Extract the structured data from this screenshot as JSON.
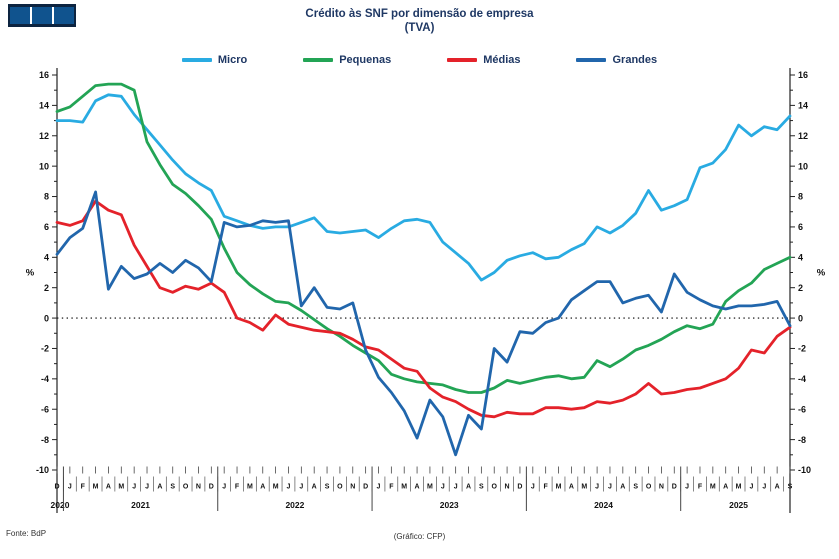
{
  "title": {
    "line1": "Crédito às SNF por dimensão de empresa",
    "line2": "(TVA)"
  },
  "footer": {
    "source": "Fonte: BdP",
    "credit": "(Gráfico: CFP)"
  },
  "axis": {
    "unit_left": "%",
    "unit_right": "%",
    "ymin": -10,
    "ymax": 16,
    "ystep": 2,
    "years": [
      {
        "label": "2020",
        "from": 0,
        "to": 0
      },
      {
        "label": "2021",
        "from": 1,
        "to": 12
      },
      {
        "label": "2022",
        "from": 13,
        "to": 24
      },
      {
        "label": "2023",
        "from": 25,
        "to": 36
      },
      {
        "label": "2024",
        "from": 37,
        "to": 48
      },
      {
        "label": "2025",
        "from": 49,
        "to": 57
      }
    ]
  },
  "chart_data": {
    "type": "line",
    "title": "Crédito às SNF por dimensão de empresa (TVA)",
    "ylabel": "%",
    "ylim": [
      -10,
      16
    ],
    "grid": false,
    "legend_position": "top",
    "x_months": [
      "D",
      "J",
      "F",
      "M",
      "A",
      "M",
      "J",
      "J",
      "A",
      "S",
      "O",
      "N",
      "D",
      "J",
      "F",
      "M",
      "A",
      "M",
      "J",
      "J",
      "A",
      "S",
      "O",
      "N",
      "D",
      "J",
      "F",
      "M",
      "A",
      "M",
      "J",
      "J",
      "A",
      "S",
      "O",
      "N",
      "D",
      "J",
      "F",
      "M",
      "A",
      "M",
      "J",
      "J",
      "A",
      "S",
      "O",
      "N",
      "D",
      "J",
      "F",
      "M",
      "A",
      "M",
      "J",
      "J",
      "A",
      "S"
    ],
    "x_start": "2020-12",
    "x_end": "2025-09",
    "series": [
      {
        "name": "Micro",
        "color": "#29ABE2",
        "values": [
          13.0,
          13.0,
          12.9,
          14.3,
          14.7,
          14.6,
          13.4,
          12.4,
          11.4,
          10.4,
          9.5,
          8.9,
          8.4,
          6.7,
          6.4,
          6.1,
          5.9,
          6.0,
          6.0,
          6.3,
          6.6,
          5.7,
          5.6,
          5.7,
          5.8,
          5.3,
          5.9,
          6.4,
          6.5,
          6.3,
          5.0,
          4.3,
          3.6,
          2.5,
          3.0,
          3.8,
          4.1,
          4.3,
          3.9,
          4.0,
          4.5,
          4.9,
          6.0,
          5.6,
          6.1,
          6.9,
          8.4,
          7.1,
          7.4,
          7.8,
          9.9,
          10.2,
          11.1,
          12.7,
          12.0,
          12.6,
          12.4,
          13.3
        ]
      },
      {
        "name": "Pequenas",
        "color": "#23A455",
        "values": [
          13.6,
          13.9,
          14.6,
          15.3,
          15.4,
          15.4,
          15.0,
          11.6,
          10.1,
          8.8,
          8.2,
          7.4,
          6.5,
          4.6,
          3.0,
          2.2,
          1.6,
          1.1,
          1.0,
          0.5,
          -0.1,
          -0.7,
          -1.2,
          -1.8,
          -2.3,
          -2.8,
          -3.7,
          -4.0,
          -4.2,
          -4.3,
          -4.4,
          -4.7,
          -4.9,
          -4.9,
          -4.6,
          -4.1,
          -4.3,
          -4.1,
          -3.9,
          -3.8,
          -4.0,
          -3.9,
          -2.8,
          -3.2,
          -2.7,
          -2.1,
          -1.8,
          -1.4,
          -0.9,
          -0.5,
          -0.7,
          -0.4,
          1.1,
          1.8,
          2.3,
          3.2,
          3.6,
          4.0
        ]
      },
      {
        "name": "Médias",
        "color": "#E4222A",
        "values": [
          6.3,
          6.1,
          6.4,
          7.7,
          7.1,
          6.8,
          4.8,
          3.4,
          2.0,
          1.7,
          2.1,
          1.9,
          2.3,
          1.7,
          0.0,
          -0.3,
          -0.8,
          0.2,
          -0.4,
          -0.6,
          -0.8,
          -0.9,
          -1.0,
          -1.4,
          -1.9,
          -2.1,
          -2.7,
          -3.3,
          -3.5,
          -4.6,
          -5.2,
          -5.5,
          -6.0,
          -6.4,
          -6.5,
          -6.2,
          -6.3,
          -6.3,
          -5.9,
          -5.9,
          -6.0,
          -5.9,
          -5.5,
          -5.6,
          -5.4,
          -5.0,
          -4.3,
          -5.0,
          -4.9,
          -4.7,
          -4.6,
          -4.3,
          -4.0,
          -3.3,
          -2.1,
          -2.3,
          -1.2,
          -0.6
        ]
      },
      {
        "name": "Grandes",
        "color": "#2166AC",
        "values": [
          4.2,
          5.3,
          5.9,
          8.3,
          1.9,
          3.4,
          2.6,
          2.9,
          3.6,
          3.0,
          3.8,
          3.3,
          2.4,
          6.3,
          6.0,
          6.1,
          6.4,
          6.3,
          6.4,
          0.8,
          2.0,
          0.7,
          0.6,
          1.0,
          -2.1,
          -3.9,
          -4.9,
          -6.1,
          -7.9,
          -5.4,
          -6.5,
          -9.0,
          -6.4,
          -7.3,
          -2.0,
          -2.9,
          -0.9,
          -1.0,
          -0.3,
          0.0,
          1.2,
          1.8,
          2.4,
          2.4,
          1.0,
          1.3,
          1.5,
          0.4,
          2.9,
          1.7,
          1.2,
          0.8,
          0.6,
          0.8,
          0.8,
          0.9,
          1.1,
          -0.5
        ]
      }
    ]
  }
}
